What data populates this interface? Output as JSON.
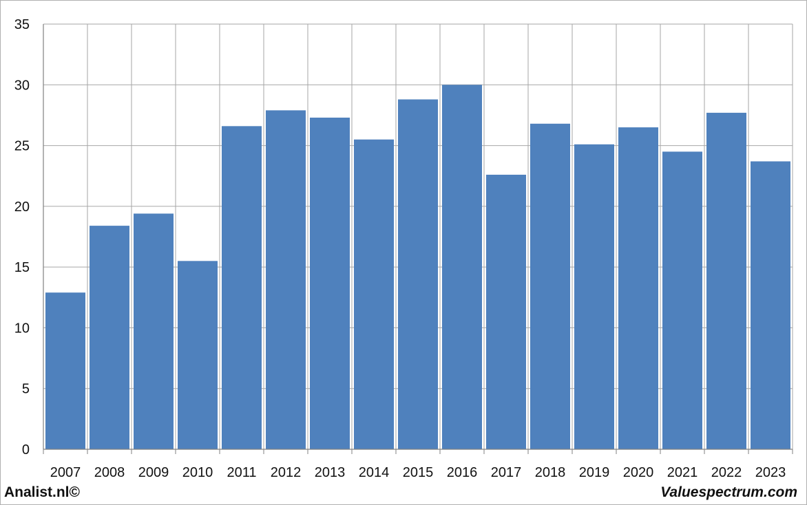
{
  "footer": {
    "left_text": "Analist.nl©",
    "right_text": "Valuespectrum.com"
  },
  "colors": {
    "bar": "#4f81bd",
    "grid": "#a6a6a6",
    "axis": "#808080",
    "text": "#111111"
  },
  "chart_data": {
    "type": "bar",
    "title": "",
    "xlabel": "",
    "ylabel": "",
    "categories": [
      "2007",
      "2008",
      "2009",
      "2010",
      "2011",
      "2012",
      "2013",
      "2014",
      "2015",
      "2016",
      "2017",
      "2018",
      "2019",
      "2020",
      "2021",
      "2022",
      "2023"
    ],
    "values": [
      12.9,
      18.4,
      19.4,
      15.5,
      26.6,
      27.9,
      27.3,
      25.5,
      28.8,
      30.0,
      22.6,
      26.8,
      25.1,
      26.5,
      24.5,
      27.7,
      23.7
    ],
    "ylim": [
      0,
      35
    ],
    "yticks": [
      0,
      5,
      10,
      15,
      20,
      25,
      30,
      35
    ],
    "grid": true,
    "legend": "none"
  }
}
